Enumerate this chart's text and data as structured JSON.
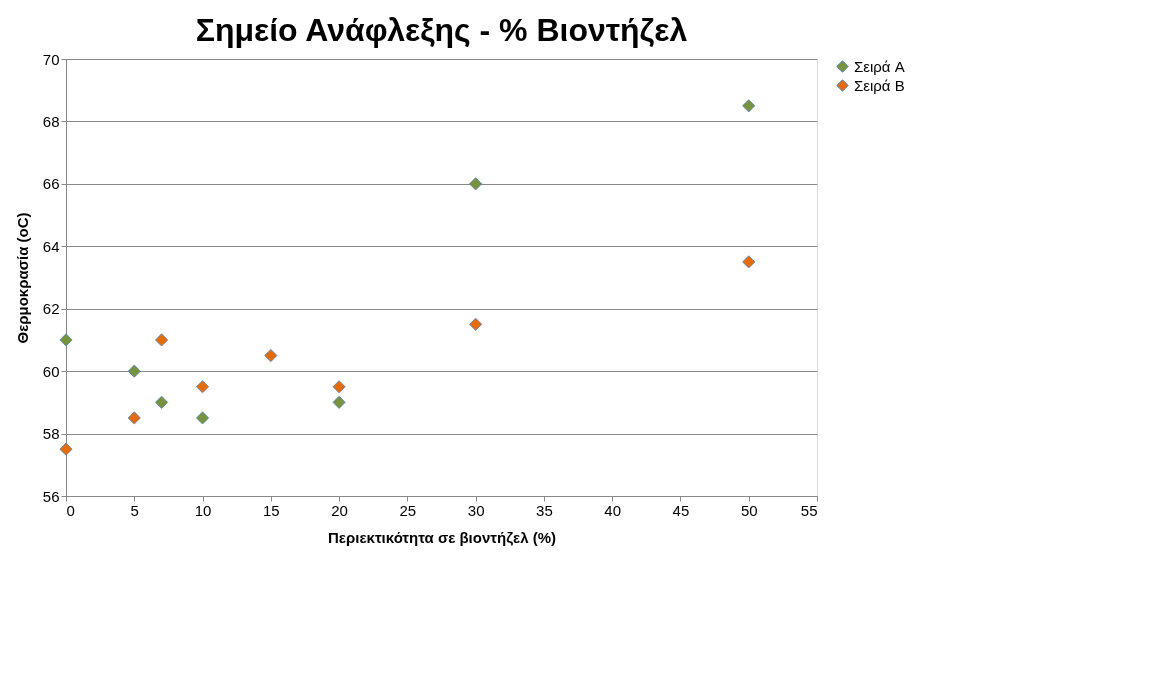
{
  "chart_data": {
    "type": "scatter",
    "title": "Σημείο Ανάφλεξης - % Βιοντήζελ",
    "xlabel": "Περιεκτικότητα σε βιοντήζελ (%)",
    "ylabel": "Θερμοκρασία (oC)",
    "series": [
      {
        "name": "Σειρά A",
        "color": "#77933c",
        "x": [
          0,
          5,
          7,
          10,
          20,
          30,
          50
        ],
        "values": [
          61,
          60,
          59,
          58.5,
          59,
          66,
          68.5
        ]
      },
      {
        "name": "Σειρά B",
        "color": "#e46c0a",
        "x": [
          0,
          5,
          7,
          10,
          15,
          20,
          30,
          50
        ],
        "values": [
          57.5,
          58.5,
          61,
          59.5,
          60.5,
          59.5,
          61.5,
          63.5
        ]
      }
    ],
    "xlim": [
      0,
      55
    ],
    "xticks": [
      0,
      5,
      10,
      15,
      20,
      25,
      30,
      35,
      40,
      45,
      50,
      55
    ],
    "ylim": [
      56,
      70
    ],
    "yticks": [
      56,
      58,
      60,
      62,
      64,
      66,
      68,
      70
    ],
    "grid": "y",
    "legend": "right",
    "marker": "diamond"
  }
}
